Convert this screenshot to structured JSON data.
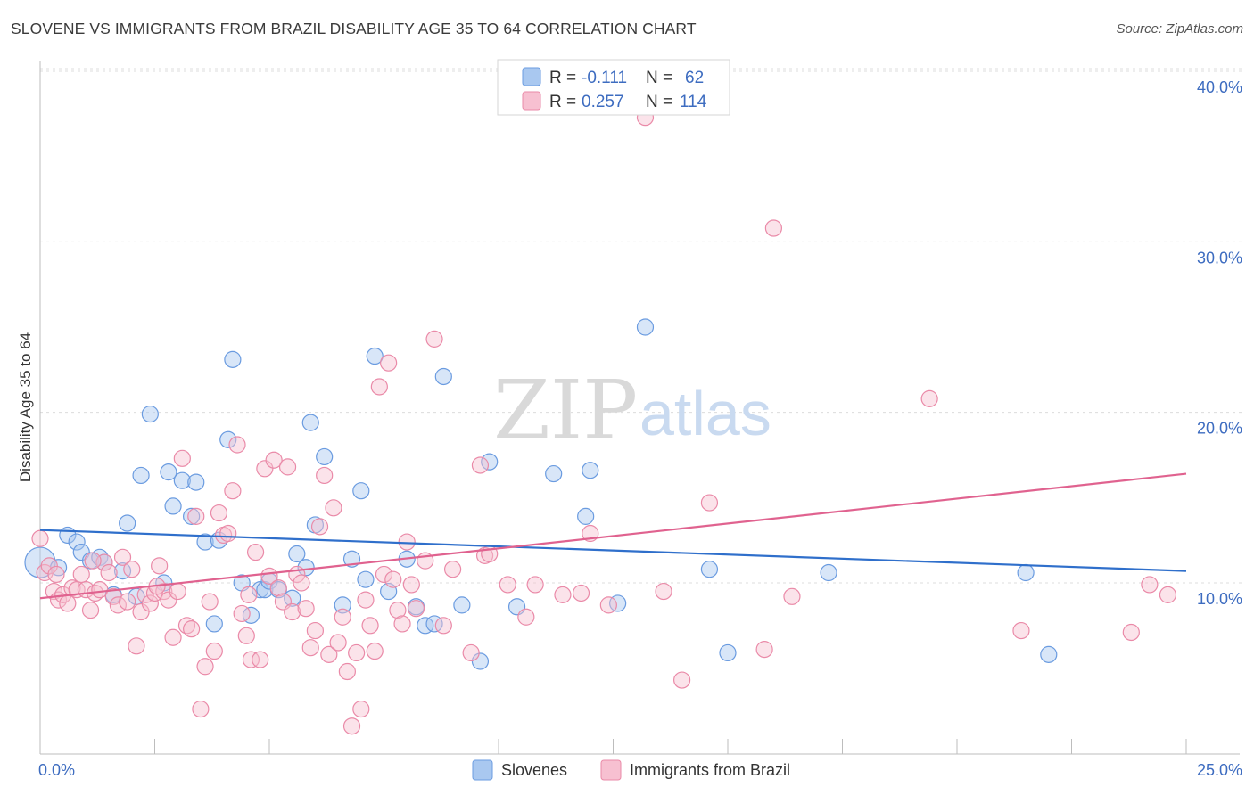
{
  "title": "SLOVENE VS IMMIGRANTS FROM BRAZIL DISABILITY AGE 35 TO 64 CORRELATION CHART",
  "source": "Source: ZipAtlas.com",
  "watermark": {
    "zip": "ZIP",
    "atlas": "atlas"
  },
  "chart_data": {
    "type": "scatter",
    "xlabel": "",
    "ylabel": "Disability Age 35 to 64",
    "xlim": [
      0,
      25
    ],
    "ylim": [
      0,
      41
    ],
    "x_tick_labels": [
      "0.0%",
      "25.0%"
    ],
    "y_ticks": [
      10,
      20,
      30,
      40
    ],
    "y_tick_labels": [
      "10.0%",
      "20.0%",
      "30.0%",
      "40.0%"
    ],
    "grid": true,
    "legend_position": "top-center",
    "stats": [
      {
        "r_label": "R =",
        "r_value": "-0.111",
        "n_label": "N =",
        "n_value": "62"
      },
      {
        "r_label": "R =",
        "r_value": "0.257",
        "n_label": "N =",
        "n_value": "114"
      }
    ],
    "series": [
      {
        "name": "Slovenes",
        "color": "#6a9be0",
        "fill": "#a9c8f0",
        "trend": [
          [
            0,
            13.1
          ],
          [
            25,
            10.7
          ]
        ],
        "points": [
          [
            0.0,
            11.2
          ],
          [
            0.4,
            10.9
          ],
          [
            0.6,
            12.8
          ],
          [
            0.8,
            12.4
          ],
          [
            0.9,
            11.8
          ],
          [
            1.1,
            11.3
          ],
          [
            1.3,
            11.5
          ],
          [
            1.4,
            11.2
          ],
          [
            1.6,
            9.3
          ],
          [
            1.8,
            10.7
          ],
          [
            1.9,
            13.5
          ],
          [
            2.1,
            9.2
          ],
          [
            2.2,
            16.3
          ],
          [
            2.4,
            19.9
          ],
          [
            2.7,
            10.0
          ],
          [
            2.8,
            16.5
          ],
          [
            2.9,
            14.5
          ],
          [
            3.1,
            16.0
          ],
          [
            3.3,
            13.9
          ],
          [
            3.4,
            15.9
          ],
          [
            3.6,
            12.4
          ],
          [
            3.8,
            7.6
          ],
          [
            3.9,
            12.5
          ],
          [
            4.1,
            18.4
          ],
          [
            4.2,
            23.1
          ],
          [
            4.4,
            10.0
          ],
          [
            4.6,
            8.1
          ],
          [
            4.8,
            9.6
          ],
          [
            4.9,
            9.6
          ],
          [
            5.0,
            10.1
          ],
          [
            5.2,
            9.6
          ],
          [
            5.5,
            9.1
          ],
          [
            5.6,
            11.7
          ],
          [
            5.8,
            10.9
          ],
          [
            5.9,
            19.4
          ],
          [
            6.0,
            13.4
          ],
          [
            6.2,
            17.4
          ],
          [
            6.6,
            8.7
          ],
          [
            6.8,
            11.4
          ],
          [
            7.0,
            15.4
          ],
          [
            7.1,
            10.2
          ],
          [
            7.3,
            23.3
          ],
          [
            7.6,
            9.5
          ],
          [
            8.0,
            11.4
          ],
          [
            8.2,
            8.6
          ],
          [
            8.4,
            7.5
          ],
          [
            8.6,
            7.6
          ],
          [
            8.8,
            22.1
          ],
          [
            9.2,
            8.7
          ],
          [
            9.6,
            5.4
          ],
          [
            9.8,
            17.1
          ],
          [
            10.4,
            8.6
          ],
          [
            11.2,
            16.4
          ],
          [
            11.9,
            13.9
          ],
          [
            12.0,
            16.6
          ],
          [
            12.6,
            8.8
          ],
          [
            13.2,
            25.0
          ],
          [
            14.6,
            10.8
          ],
          [
            15.0,
            5.9
          ],
          [
            17.2,
            10.6
          ],
          [
            21.5,
            10.6
          ],
          [
            22.0,
            5.8
          ]
        ]
      },
      {
        "name": "Immigrants from Brazil",
        "color": "#ea8aa8",
        "fill": "#f7c0d1",
        "trend": [
          [
            0,
            9.1
          ],
          [
            25,
            16.4
          ]
        ],
        "points": [
          [
            0.0,
            12.6
          ],
          [
            0.1,
            10.6
          ],
          [
            0.2,
            11.0
          ],
          [
            0.3,
            9.5
          ],
          [
            0.4,
            9.0
          ],
          [
            0.5,
            9.3
          ],
          [
            0.6,
            8.8
          ],
          [
            0.7,
            9.7
          ],
          [
            0.8,
            9.6
          ],
          [
            0.9,
            10.5
          ],
          [
            1.0,
            9.6
          ],
          [
            1.1,
            8.4
          ],
          [
            1.2,
            9.4
          ],
          [
            1.3,
            9.6
          ],
          [
            1.4,
            11.2
          ],
          [
            1.5,
            10.6
          ],
          [
            1.6,
            9.2
          ],
          [
            1.7,
            8.7
          ],
          [
            1.8,
            11.5
          ],
          [
            1.9,
            8.9
          ],
          [
            2.0,
            10.8
          ],
          [
            2.1,
            6.3
          ],
          [
            2.2,
            8.3
          ],
          [
            2.3,
            9.3
          ],
          [
            2.4,
            8.8
          ],
          [
            2.5,
            9.4
          ],
          [
            2.6,
            11.0
          ],
          [
            2.7,
            9.5
          ],
          [
            2.8,
            9.0
          ],
          [
            2.9,
            6.8
          ],
          [
            3.0,
            9.5
          ],
          [
            3.1,
            17.3
          ],
          [
            3.2,
            7.5
          ],
          [
            3.3,
            7.3
          ],
          [
            3.4,
            13.9
          ],
          [
            3.5,
            2.6
          ],
          [
            3.6,
            5.1
          ],
          [
            3.7,
            8.9
          ],
          [
            3.8,
            6.0
          ],
          [
            3.9,
            14.1
          ],
          [
            4.0,
            12.8
          ],
          [
            4.1,
            12.9
          ],
          [
            4.2,
            15.4
          ],
          [
            4.3,
            18.1
          ],
          [
            4.4,
            8.2
          ],
          [
            4.5,
            6.9
          ],
          [
            4.6,
            5.5
          ],
          [
            4.7,
            11.8
          ],
          [
            4.8,
            5.5
          ],
          [
            4.9,
            16.7
          ],
          [
            5.0,
            10.4
          ],
          [
            5.1,
            17.2
          ],
          [
            5.2,
            9.7
          ],
          [
            5.3,
            8.9
          ],
          [
            5.4,
            16.8
          ],
          [
            5.5,
            8.3
          ],
          [
            5.6,
            10.5
          ],
          [
            5.7,
            10.0
          ],
          [
            5.8,
            8.5
          ],
          [
            5.9,
            6.2
          ],
          [
            6.0,
            7.2
          ],
          [
            6.1,
            13.3
          ],
          [
            6.2,
            16.3
          ],
          [
            6.3,
            5.8
          ],
          [
            6.4,
            14.4
          ],
          [
            6.5,
            6.5
          ],
          [
            6.6,
            8.0
          ],
          [
            6.7,
            4.8
          ],
          [
            6.8,
            1.6
          ],
          [
            6.9,
            5.9
          ],
          [
            7.0,
            2.6
          ],
          [
            7.1,
            9.0
          ],
          [
            7.2,
            7.5
          ],
          [
            7.3,
            6.0
          ],
          [
            7.4,
            21.5
          ],
          [
            7.5,
            10.5
          ],
          [
            7.6,
            22.9
          ],
          [
            7.7,
            10.2
          ],
          [
            7.8,
            8.4
          ],
          [
            7.9,
            7.6
          ],
          [
            8.0,
            12.4
          ],
          [
            8.1,
            9.9
          ],
          [
            8.2,
            8.5
          ],
          [
            8.4,
            11.3
          ],
          [
            8.6,
            24.3
          ],
          [
            8.8,
            7.5
          ],
          [
            9.0,
            10.8
          ],
          [
            9.4,
            5.9
          ],
          [
            9.6,
            16.9
          ],
          [
            9.7,
            11.6
          ],
          [
            9.8,
            11.7
          ],
          [
            10.2,
            9.9
          ],
          [
            10.6,
            8.0
          ],
          [
            10.8,
            9.9
          ],
          [
            11.4,
            9.3
          ],
          [
            11.8,
            9.4
          ],
          [
            12.0,
            12.9
          ],
          [
            12.4,
            8.7
          ],
          [
            13.2,
            37.3
          ],
          [
            13.6,
            9.5
          ],
          [
            14.0,
            4.3
          ],
          [
            14.6,
            14.7
          ],
          [
            15.8,
            6.1
          ],
          [
            16.0,
            30.8
          ],
          [
            16.4,
            9.2
          ],
          [
            19.4,
            20.8
          ],
          [
            21.4,
            7.2
          ],
          [
            23.8,
            7.1
          ],
          [
            24.2,
            9.9
          ],
          [
            24.6,
            9.3
          ],
          [
            0.35,
            10.5
          ],
          [
            1.15,
            11.3
          ],
          [
            2.55,
            9.8
          ],
          [
            4.55,
            9.3
          ]
        ]
      }
    ]
  }
}
